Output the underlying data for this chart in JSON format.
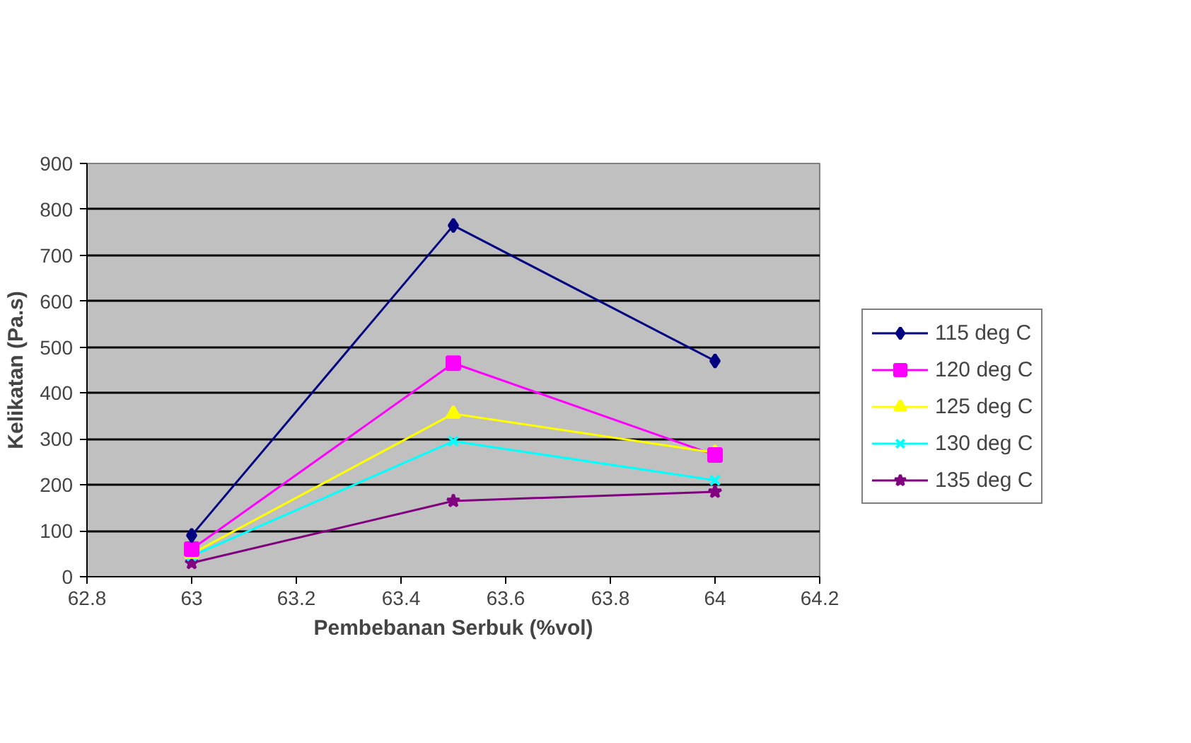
{
  "chart_data": {
    "type": "line",
    "xlabel": "Pembebanan Serbuk (%vol)",
    "ylabel": "Kelikatan (Pa.s)",
    "x": [
      63,
      63.5,
      64
    ],
    "series": [
      {
        "name": "115 deg C",
        "color": "#000080",
        "marker": "diamond",
        "values": [
          90,
          765,
          470
        ]
      },
      {
        "name": "120 deg C",
        "color": "#ff00ff",
        "marker": "square",
        "values": [
          60,
          465,
          265
        ]
      },
      {
        "name": "125 deg C",
        "color": "#ffff00",
        "marker": "triangle",
        "values": [
          50,
          355,
          270
        ]
      },
      {
        "name": "130 deg C",
        "color": "#00ffff",
        "marker": "cross",
        "values": [
          45,
          295,
          210
        ]
      },
      {
        "name": "135 deg C",
        "color": "#800080",
        "marker": "star",
        "values": [
          30,
          165,
          185
        ]
      }
    ],
    "xlim": [
      62.8,
      64.2
    ],
    "xticks": [
      62.8,
      63,
      63.2,
      63.4,
      63.6,
      63.8,
      64,
      64.2
    ],
    "ylim": [
      0,
      900
    ],
    "yticks": [
      0,
      100,
      200,
      300,
      400,
      500,
      600,
      700,
      800,
      900
    ],
    "grid": "y",
    "legend": "right"
  }
}
